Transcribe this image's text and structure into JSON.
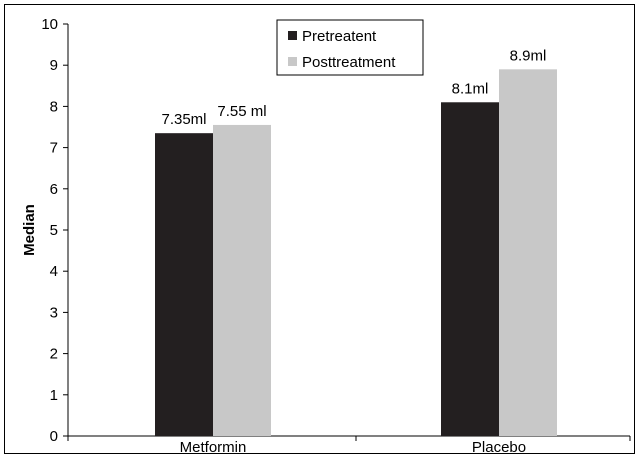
{
  "chart_data": {
    "type": "bar",
    "categories": [
      "Metformin",
      "Placebo"
    ],
    "series": [
      {
        "name": "Pretreatent",
        "values": [
          7.35,
          8.1
        ],
        "labels": [
          "7.35ml",
          "8.1ml"
        ],
        "color": "#231f20"
      },
      {
        "name": "Posttreatment",
        "values": [
          7.55,
          8.9
        ],
        "labels": [
          "7.55 ml",
          "8.9ml"
        ],
        "color": "#c8c8c8"
      }
    ],
    "xlabel": "",
    "ylabel": "Median",
    "ylim": [
      0,
      10
    ],
    "yticks": [
      "0",
      "1",
      "2",
      "3",
      "4",
      "5",
      "6",
      "7",
      "8",
      "9",
      "10"
    ],
    "grid": false,
    "legend_position": "top-center"
  }
}
